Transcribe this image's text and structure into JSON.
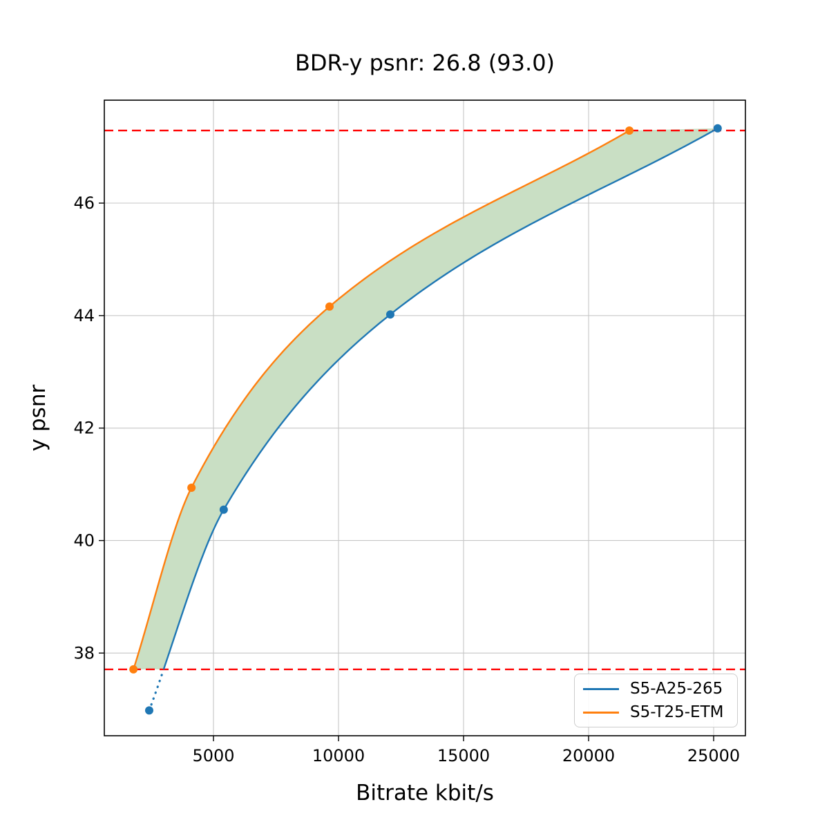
{
  "title": "BDR-y psnr: 26.8 (93.0)",
  "chart_data": {
    "type": "line",
    "title": "BDR-y psnr: 26.8 (93.0)",
    "xlabel": "Bitrate kbit/s",
    "ylabel": "y psnr",
    "xlim": [
      635,
      26270
    ],
    "ylim": [
      36.53,
      47.83
    ],
    "xticks": [
      "5000",
      "10000",
      "15000",
      "20000",
      "25000"
    ],
    "xtick_values": [
      5000,
      10000,
      15000,
      20000,
      25000
    ],
    "yticks": [
      "38",
      "40",
      "42",
      "44",
      "46"
    ],
    "ytick_values": [
      38,
      40,
      42,
      44,
      46
    ],
    "grid": true,
    "grid_color": "#c6c6c6",
    "legend_position": "lower right",
    "series": [
      {
        "name": "S5-A25-265",
        "color": "#1f77b4",
        "points": [
          [
            2430,
            36.98
          ],
          [
            5410,
            40.55
          ],
          [
            12070,
            44.02
          ],
          [
            25160,
            47.33
          ]
        ],
        "dotted_outside_overlap": true
      },
      {
        "name": "S5-T25-ETM",
        "color": "#ff7f0e",
        "points": [
          [
            1800,
            37.71
          ],
          [
            4120,
            40.94
          ],
          [
            9640,
            44.16
          ],
          [
            21630,
            47.29
          ]
        ],
        "dotted_outside_overlap": false
      }
    ],
    "overlap_hlines": {
      "style": "dashed",
      "color": "#ff0000",
      "top": 47.29,
      "bottom": 37.71
    },
    "fill_between_color": "#c9dfc4",
    "annotation": "BD-rate overlap region shaded green between the two rate-distortion curves"
  }
}
